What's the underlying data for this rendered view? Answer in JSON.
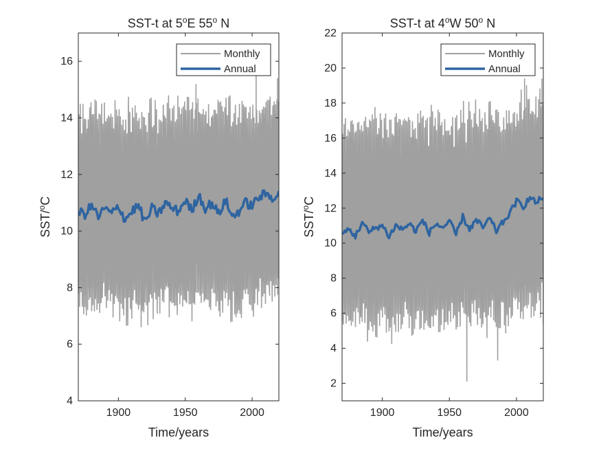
{
  "figure": {
    "background": "#ffffff",
    "axis_color": "#262626"
  },
  "chart_data": [
    {
      "type": "line",
      "title_parts": [
        "SST-t at 5",
        "o",
        "E 55",
        "o",
        " N"
      ],
      "xlabel": "Time/years",
      "ylabel_parts": [
        "SST/",
        "o",
        "C"
      ],
      "xlim": [
        1870,
        2020
      ],
      "ylim": [
        4,
        17
      ],
      "xticks": [
        1900,
        1950,
        2000
      ],
      "yticks": [
        4,
        6,
        8,
        10,
        12,
        14,
        16
      ],
      "legend": {
        "position": "top-right",
        "entries": [
          "Monthly",
          "Annual"
        ]
      },
      "series": [
        {
          "name": "Monthly",
          "color": "#a0a0a0",
          "resolution": "monthly",
          "typical_min": 7.5,
          "typical_max": 14.0,
          "extremes": [
            {
              "x": 1917,
              "y": 6.6
            },
            {
              "x": 1958,
              "y": 15.2
            },
            {
              "x": 2003,
              "y": 15.5
            },
            {
              "x": 2019,
              "y": 15.4
            }
          ]
        },
        {
          "name": "Annual",
          "color": "#2e64a0",
          "x": [
            1870,
            1875,
            1880,
            1885,
            1890,
            1895,
            1900,
            1905,
            1910,
            1915,
            1920,
            1925,
            1930,
            1935,
            1940,
            1945,
            1950,
            1955,
            1960,
            1965,
            1970,
            1975,
            1980,
            1985,
            1990,
            1995,
            2000,
            2005,
            2010,
            2015,
            2020
          ],
          "values": [
            10.7,
            10.6,
            10.9,
            10.5,
            10.8,
            10.6,
            10.9,
            10.4,
            10.7,
            10.9,
            10.3,
            10.8,
            10.6,
            11.0,
            10.8,
            10.7,
            11.1,
            10.7,
            11.3,
            10.8,
            11.0,
            10.6,
            11.1,
            10.5,
            10.7,
            11.0,
            10.9,
            11.2,
            11.3,
            11.2,
            11.3
          ]
        }
      ]
    },
    {
      "type": "line",
      "title_parts": [
        "SST-t at 4",
        "o",
        "W 50",
        "o",
        " N"
      ],
      "xlabel": "Time/years",
      "ylabel_parts": [
        "SST/",
        "o",
        "C"
      ],
      "xlim": [
        1870,
        2020
      ],
      "ylim": [
        1,
        22
      ],
      "xticks": [
        1900,
        1950,
        2000
      ],
      "yticks": [
        2,
        4,
        6,
        8,
        10,
        12,
        14,
        16,
        18,
        20,
        22
      ],
      "legend": {
        "position": "top-right",
        "entries": [
          "Monthly",
          "Annual"
        ]
      },
      "series": [
        {
          "name": "Monthly",
          "color": "#a0a0a0",
          "resolution": "monthly",
          "typical_min": 5.5,
          "typical_max": 16.5,
          "extremes": [
            {
              "x": 1963,
              "y": 2.1
            },
            {
              "x": 1986,
              "y": 3.3
            },
            {
              "x": 2006,
              "y": 19.4
            },
            {
              "x": 2019,
              "y": 19.4
            }
          ]
        },
        {
          "name": "Annual",
          "color": "#2e64a0",
          "x": [
            1870,
            1875,
            1880,
            1885,
            1890,
            1895,
            1900,
            1905,
            1910,
            1915,
            1920,
            1925,
            1930,
            1935,
            1940,
            1945,
            1950,
            1955,
            1960,
            1965,
            1970,
            1975,
            1980,
            1985,
            1990,
            1995,
            2000,
            2005,
            2010,
            2015,
            2020
          ],
          "values": [
            10.5,
            10.8,
            10.4,
            11.2,
            10.6,
            10.9,
            11.0,
            10.4,
            11.0,
            10.8,
            11.1,
            10.7,
            11.3,
            10.6,
            11.1,
            10.9,
            11.2,
            10.5,
            11.5,
            10.8,
            11.3,
            10.9,
            11.4,
            10.7,
            11.2,
            11.7,
            12.4,
            12.1,
            12.6,
            12.3,
            12.7
          ]
        }
      ]
    }
  ]
}
